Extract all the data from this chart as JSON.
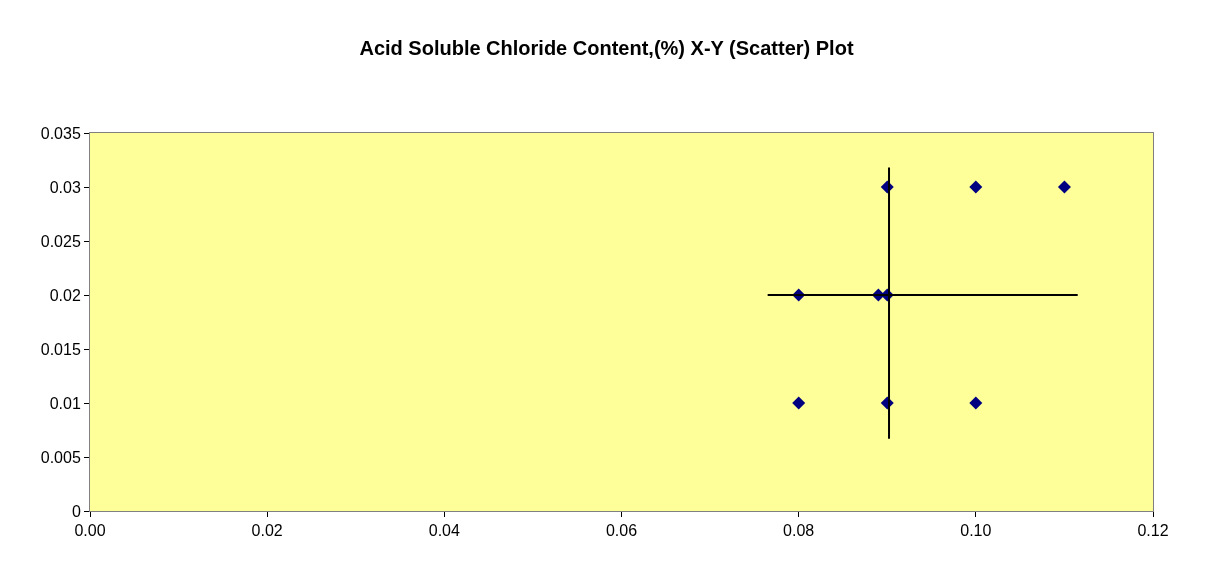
{
  "chart_data": {
    "type": "scatter",
    "title": "Acid Soluble Chloride Content,(%) X-Y (Scatter) Plot",
    "xlim": [
      0,
      0.12
    ],
    "xticks": [
      {
        "value": 0,
        "label": "0.00"
      },
      {
        "value": 0.02,
        "label": "0.02"
      },
      {
        "value": 0.04,
        "label": "0.04"
      },
      {
        "value": 0.06,
        "label": "0.06"
      },
      {
        "value": 0.08,
        "label": "0.08"
      },
      {
        "value": 0.1,
        "label": "0.10"
      },
      {
        "value": 0.12,
        "label": "0.12"
      }
    ],
    "ylim": [
      0,
      0.035
    ],
    "yticks": [
      0,
      0.005,
      0.01,
      0.015,
      0.02,
      0.025,
      0.03,
      0.035
    ],
    "grid": false,
    "series": [
      {
        "color": "#000080",
        "marker": "diamond",
        "x": [
          0.08,
          0.089,
          0.09,
          0.09,
          0.1,
          0.11,
          0.08,
          0.09,
          0.1
        ],
        "values": [
          0.02,
          0.02,
          0.02,
          0.03,
          0.03,
          0.03,
          0.01,
          0.01,
          0.01
        ]
      },
      {
        "type": "line",
        "color": "#000000",
        "marker": "none",
        "x": [
          0.0765,
          0.1115
        ],
        "values": [
          0.02,
          0.02
        ]
      },
      {
        "type": "line",
        "color": "#000000",
        "marker": "none",
        "x": [
          0.0902,
          0.0902
        ],
        "values": [
          0.0067,
          0.0318
        ]
      }
    ]
  }
}
